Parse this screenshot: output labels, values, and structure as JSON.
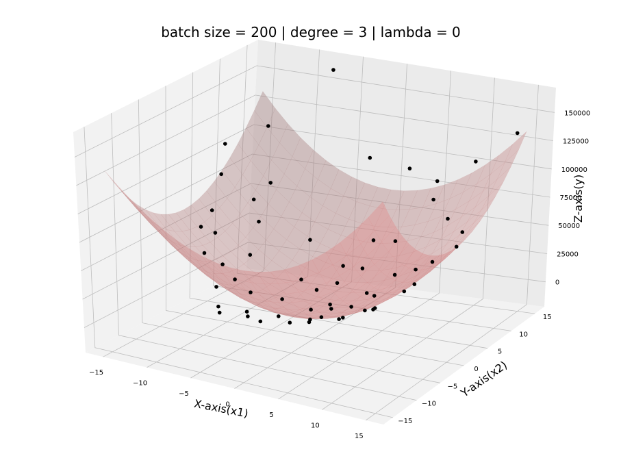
{
  "chart_data": {
    "type": "scatter",
    "title": "batch size = 200 | degree = 3 | lambda = 0",
    "xlabel": "X-axis(x1)",
    "ylabel": "Y-axis(x2)",
    "zlabel": "Z-axis(y)",
    "x_ticks": [
      "−15",
      "−10",
      "−5",
      "0",
      "5",
      "10",
      "15"
    ],
    "y_ticks": [
      "−15",
      "−10",
      "−5",
      "0",
      "5",
      "10",
      "15"
    ],
    "z_ticks": [
      "0",
      "25000",
      "50000",
      "75000",
      "100000",
      "125000",
      "150000"
    ],
    "xlim": [
      -17,
      17
    ],
    "ylim": [
      -17,
      17
    ],
    "zlim": [
      -22000,
      172000
    ],
    "surface_color": "#e07a7a",
    "point_color": "#000000",
    "grid": true,
    "surface": {
      "model": "z = 300 * (x1^2 + x2^2)",
      "range": [
        -15,
        15
      ]
    },
    "points": [
      {
        "x1": -15.0,
        "x2": 8.0,
        "y": 106000
      },
      {
        "x1": -14.5,
        "x2": 6.5,
        "y": 84000
      },
      {
        "x1": -12.5,
        "x2": 12.0,
        "y": 115000
      },
      {
        "x1": -13.5,
        "x2": 3.0,
        "y": 62000
      },
      {
        "x1": -12.0,
        "x2": 1.0,
        "y": 49000
      },
      {
        "x1": -10.5,
        "x2": 6.0,
        "y": 68000
      },
      {
        "x1": -9.5,
        "x2": 7.5,
        "y": 80000
      },
      {
        "x1": -9.5,
        "x2": -2.0,
        "y": 32000
      },
      {
        "x1": -8.5,
        "x2": 3.5,
        "y": 57000
      },
      {
        "x1": -7.5,
        "x2": 0.0,
        "y": 38000
      },
      {
        "x1": -7.0,
        "x2": -4.0,
        "y": 27000
      },
      {
        "x1": -8.0,
        "x2": -6.0,
        "y": 24000
      },
      {
        "x1": -5.5,
        "x2": -3.5,
        "y": 17000
      },
      {
        "x1": -6.0,
        "x2": -9.0,
        "y": 12000
      },
      {
        "x1": -4.0,
        "x2": -7.0,
        "y": 11000
      },
      {
        "x1": -3.5,
        "x2": 5.0,
        "y": 44000
      },
      {
        "x1": -2.5,
        "x2": 1.5,
        "y": 20000
      },
      {
        "x1": -3.0,
        "x2": -1.5,
        "y": 10000
      },
      {
        "x1": -1.5,
        "x2": -5.0,
        "y": 6000
      },
      {
        "x1": -1.0,
        "x2": 2.0,
        "y": 12000
      },
      {
        "x1": 0.0,
        "x2": -1.0,
        "y": 4000
      },
      {
        "x1": 0.5,
        "x2": 3.5,
        "y": 16000
      },
      {
        "x1": 1.0,
        "x2": -3.0,
        "y": 2000
      },
      {
        "x1": 1.5,
        "x2": 0.5,
        "y": 3000
      },
      {
        "x1": 2.5,
        "x2": -6.0,
        "y": 9000
      },
      {
        "x1": 2.5,
        "x2": 5.0,
        "y": 27000
      },
      {
        "x1": 3.5,
        "x2": 1.0,
        "y": 6000
      },
      {
        "x1": 4.0,
        "x2": -2.5,
        "y": 5000
      },
      {
        "x1": 4.5,
        "x2": 8.0,
        "y": 45000
      },
      {
        "x1": 5.0,
        "x2": 3.0,
        "y": 12000
      },
      {
        "x1": 5.5,
        "x2": -4.5,
        "y": 13000
      },
      {
        "x1": 6.5,
        "x2": 0.0,
        "y": 10000
      },
      {
        "x1": 7.0,
        "x2": 11.0,
        "y": 76000
      },
      {
        "x1": 7.5,
        "x2": -1.5,
        "y": 16000
      },
      {
        "x1": 8.5,
        "x2": 5.0,
        "y": 33000
      },
      {
        "x1": 9.0,
        "x2": -6.5,
        "y": 28000
      },
      {
        "x1": 10.0,
        "x2": 2.0,
        "y": 30000
      },
      {
        "x1": 10.5,
        "x2": 13.0,
        "y": 108000
      },
      {
        "x1": 11.5,
        "x2": -3.0,
        "y": 38000
      },
      {
        "x1": 12.0,
        "x2": 8.0,
        "y": 61000
      },
      {
        "x1": 13.0,
        "x2": -8.0,
        "y": 64000
      },
      {
        "x1": 13.5,
        "x2": 4.0,
        "y": 60000
      },
      {
        "x1": 14.5,
        "x2": 14.0,
        "y": 135000
      },
      {
        "x1": -2.0,
        "x2": 14.0,
        "y": 95000
      },
      {
        "x1": -6.0,
        "x2": 13.0,
        "y": 168000
      },
      {
        "x1": 1.5,
        "x2": 9.0,
        "y": 40000
      },
      {
        "x1": -0.5,
        "x2": 6.5,
        "y": 22000
      },
      {
        "x1": 2.0,
        "x2": 15.0,
        "y": 88000
      },
      {
        "x1": 6.0,
        "x2": 13.5,
        "y": 85000
      },
      {
        "x1": 9.5,
        "x2": 9.5,
        "y": 66000
      },
      {
        "x1": -11.0,
        "x2": -3.0,
        "y": 42000
      },
      {
        "x1": -12.5,
        "x2": -1.0,
        "y": 58000
      },
      {
        "x1": -4.5,
        "x2": -12.0,
        "y": 26000
      },
      {
        "x1": -2.0,
        "x2": -10.5,
        "y": 18000
      },
      {
        "x1": 0.5,
        "x2": -12.5,
        "y": 22000
      },
      {
        "x1": 3.0,
        "x2": -11.0,
        "y": 21000
      },
      {
        "x1": 6.0,
        "x2": -10.0,
        "y": 27000
      },
      {
        "x1": 8.0,
        "x2": -12.0,
        "y": 44000
      },
      {
        "x1": 11.0,
        "x2": -10.0,
        "y": 52000
      },
      {
        "x1": 14.0,
        "x2": -2.0,
        "y": 62000
      }
    ]
  }
}
